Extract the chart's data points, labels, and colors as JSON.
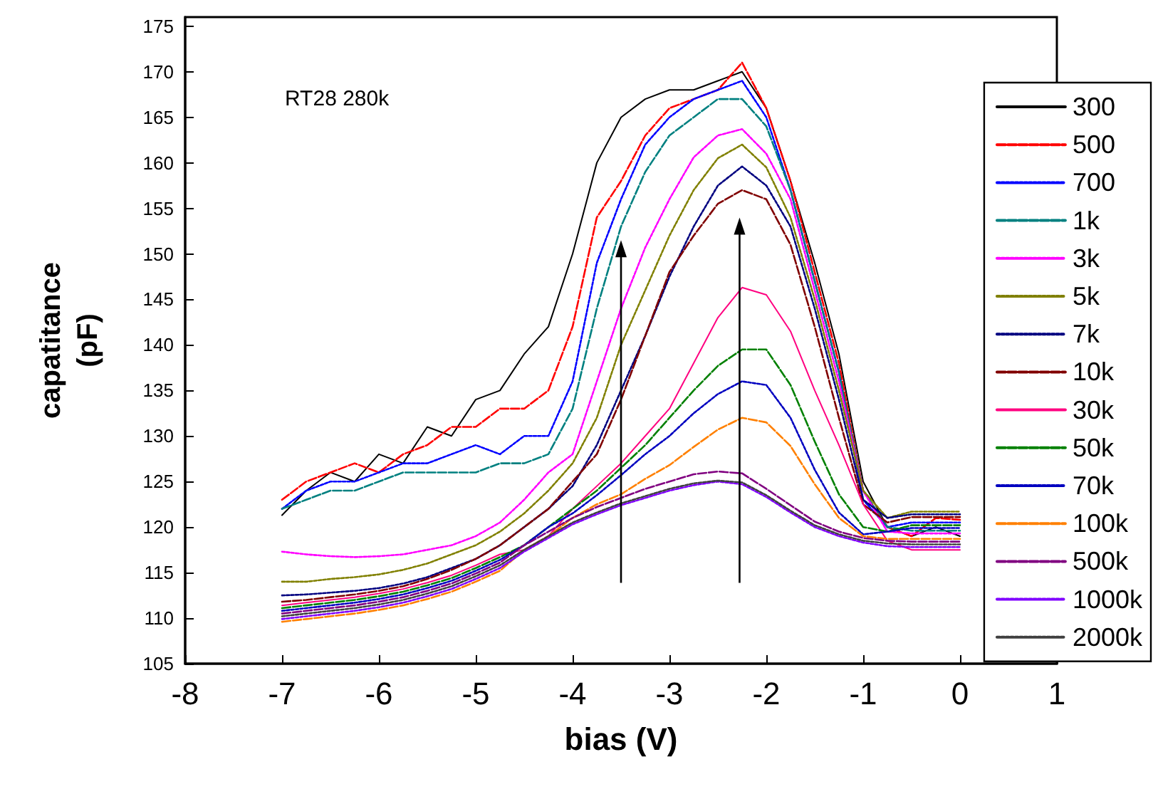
{
  "chart_data": {
    "type": "line",
    "xlabel": "bias (V)",
    "ylabel": "capatitance (pF)",
    "annotations": [
      "RT28 280k"
    ],
    "xlim": [
      -8,
      1
    ],
    "xticks": [
      -8,
      -7,
      -6,
      -5,
      -4,
      -3,
      -2,
      -1,
      0,
      1
    ],
    "ylim": [
      105,
      176
    ],
    "yticks": [
      105,
      110,
      115,
      120,
      125,
      130,
      135,
      140,
      145,
      150,
      155,
      160,
      165,
      170,
      175
    ],
    "grid": false,
    "legend": "right",
    "marker": "none",
    "x": [
      -7,
      -6.75,
      -6.5,
      -6.25,
      -6,
      -5.75,
      -5.5,
      -5.25,
      -5,
      -4.75,
      -4.5,
      -4.25,
      -4,
      -3.75,
      -3.5,
      -3.25,
      -3,
      -2.75,
      -2.5,
      -2.25,
      -2,
      -1.75,
      -1.5,
      -1.25,
      -1,
      -0.75,
      -0.5,
      -0.25,
      0
    ],
    "series": [
      {
        "name": "300",
        "color": "#000000",
        "line_style": "solid",
        "values": [
          121.3,
          124,
          126,
          125,
          128,
          127,
          131,
          130,
          134,
          135,
          139,
          142,
          150,
          160,
          165,
          167,
          168,
          168,
          169,
          170,
          166,
          158,
          149,
          139,
          125,
          120,
          119,
          120,
          119
        ]
      },
      {
        "name": "500",
        "color": "#ff0000",
        "line_style": "dashed",
        "values": [
          123,
          125,
          126,
          127,
          126,
          128,
          129,
          131,
          131,
          133,
          133,
          135,
          142,
          154,
          158,
          163,
          166,
          167,
          168,
          171,
          166,
          158,
          148,
          138,
          124,
          120,
          119,
          121,
          120.8
        ]
      },
      {
        "name": "700",
        "color": "#0000ff",
        "line_style": "dotted",
        "values": [
          122,
          124,
          125,
          125,
          126,
          127,
          127,
          128,
          129,
          128,
          130,
          130,
          136,
          149,
          156,
          162,
          165,
          167,
          168,
          169,
          165,
          157,
          147,
          137,
          123,
          120,
          120.5,
          120.5,
          120.5
        ]
      },
      {
        "name": "1k",
        "color": "#008080",
        "line_style": "dashed",
        "values": [
          122,
          123,
          124,
          124,
          125,
          126,
          126,
          126,
          126,
          127,
          127,
          128,
          133,
          144,
          153,
          159,
          163,
          165,
          167,
          167,
          164,
          157,
          147,
          137,
          124,
          120,
          119.6,
          119.6,
          119.6
        ]
      },
      {
        "name": "3k",
        "color": "#ff00ff",
        "line_style": "dotted",
        "values": [
          117.3,
          117,
          116.8,
          116.7,
          116.8,
          117,
          117.5,
          118,
          119,
          120.5,
          123,
          126,
          128,
          136,
          144,
          150.7,
          156,
          160.6,
          163,
          163.7,
          161,
          156,
          146,
          136,
          124,
          119.5,
          119.3,
          119.3,
          119.3
        ]
      },
      {
        "name": "5k",
        "color": "#808000",
        "line_style": "dotted",
        "values": [
          114,
          114,
          114.3,
          114.5,
          114.8,
          115.3,
          116,
          117,
          118,
          119.5,
          121.5,
          124,
          127,
          132,
          140,
          146,
          152,
          157,
          160.5,
          162,
          159.5,
          154,
          145,
          135,
          124,
          121,
          121.7,
          121.7,
          121.7
        ]
      },
      {
        "name": "7k",
        "color": "#000080",
        "line_style": "dotted",
        "values": [
          112.5,
          112.6,
          112.8,
          113,
          113.3,
          113.8,
          114.5,
          115.5,
          116.5,
          118,
          120,
          122,
          124.5,
          129,
          135,
          141,
          147.5,
          153,
          157.5,
          159.6,
          157.5,
          153,
          144,
          134,
          123,
          121,
          121.4,
          121.4,
          121.4
        ]
      },
      {
        "name": "10k",
        "color": "#800000",
        "line_style": "dashed",
        "values": [
          111.8,
          112,
          112.3,
          112.6,
          113,
          113.5,
          114.3,
          115.3,
          116.5,
          118,
          120,
          122,
          125,
          128,
          134,
          141,
          148,
          152,
          155.5,
          157,
          156,
          151,
          142,
          132,
          122.5,
          120.5,
          121.1,
          121.1,
          121.1
        ]
      },
      {
        "name": "30k",
        "color": "#ff0080",
        "line_style": "solid",
        "values": [
          111.4,
          111.7,
          112,
          112.3,
          112.7,
          113.2,
          113.9,
          114.7,
          115.8,
          117,
          117.5,
          119,
          122,
          124.5,
          127,
          130,
          133,
          138,
          143,
          146.3,
          145.5,
          141.5,
          135,
          129,
          122.5,
          118.5,
          117.5,
          117.5,
          117.5
        ]
      },
      {
        "name": "50k",
        "color": "#008000",
        "line_style": "dashed",
        "values": [
          111.1,
          111.4,
          111.7,
          112,
          112.4,
          112.9,
          113.6,
          114.4,
          115.5,
          116.7,
          118,
          120,
          122,
          124,
          126.5,
          129,
          132,
          135,
          137.7,
          139.5,
          139.5,
          135.6,
          129.4,
          123.6,
          120,
          119.5,
          120.2,
          120.2,
          120.2
        ]
      },
      {
        "name": "70k",
        "color": "#0000c0",
        "line_style": "dotted",
        "values": [
          110.8,
          111.1,
          111.4,
          111.7,
          112.1,
          112.6,
          113.3,
          114.1,
          115.2,
          116.4,
          118,
          120,
          121.5,
          123.5,
          125.7,
          128,
          130,
          132.5,
          134.6,
          136,
          135.6,
          132,
          126.3,
          121.6,
          119.2,
          119.5,
          119.9,
          119.9,
          119.9
        ]
      },
      {
        "name": "100k",
        "color": "#ff8000",
        "line_style": "dashed",
        "values": [
          109.6,
          109.9,
          110.2,
          110.5,
          110.9,
          111.4,
          112.1,
          112.9,
          114,
          115.2,
          117.5,
          119,
          121,
          122.5,
          123.6,
          125.3,
          126.8,
          128.8,
          130.7,
          132,
          131.5,
          128.9,
          124.7,
          121,
          119,
          118.7,
          118.7,
          118.7,
          118.7
        ]
      },
      {
        "name": "500k",
        "color": "#800080",
        "line_style": "dashed",
        "values": [
          110.5,
          110.8,
          111.1,
          111.4,
          111.8,
          112.3,
          113,
          113.8,
          114.9,
          116.1,
          118,
          119.5,
          121,
          122.2,
          123.2,
          124.2,
          125,
          125.8,
          126.1,
          125.9,
          124.2,
          122.4,
          120.6,
          119.5,
          118.8,
          118.5,
          118.4,
          118.4,
          118.4
        ]
      },
      {
        "name": "1000k",
        "color": "#8000ff",
        "line_style": "dotted",
        "values": [
          109.9,
          110.2,
          110.5,
          110.8,
          111.2,
          111.7,
          112.4,
          113.2,
          114.3,
          115.5,
          117.3,
          118.8,
          120.3,
          121.4,
          122.4,
          123.2,
          124,
          124.6,
          125,
          124.7,
          123.3,
          121.6,
          120,
          119,
          118.3,
          117.9,
          117.8,
          117.8,
          117.8
        ]
      },
      {
        "name": "2000k",
        "color": "#404040",
        "line_style": "dotted",
        "values": [
          110.2,
          110.5,
          110.8,
          111.1,
          111.5,
          112,
          112.7,
          113.5,
          114.6,
          115.8,
          117.5,
          119,
          120.5,
          121.6,
          122.6,
          123.4,
          124.2,
          124.8,
          125.1,
          124.9,
          123.5,
          121.8,
          120.2,
          119.2,
          118.5,
          118.2,
          118.1,
          118.1,
          118.1
        ]
      }
    ]
  }
}
